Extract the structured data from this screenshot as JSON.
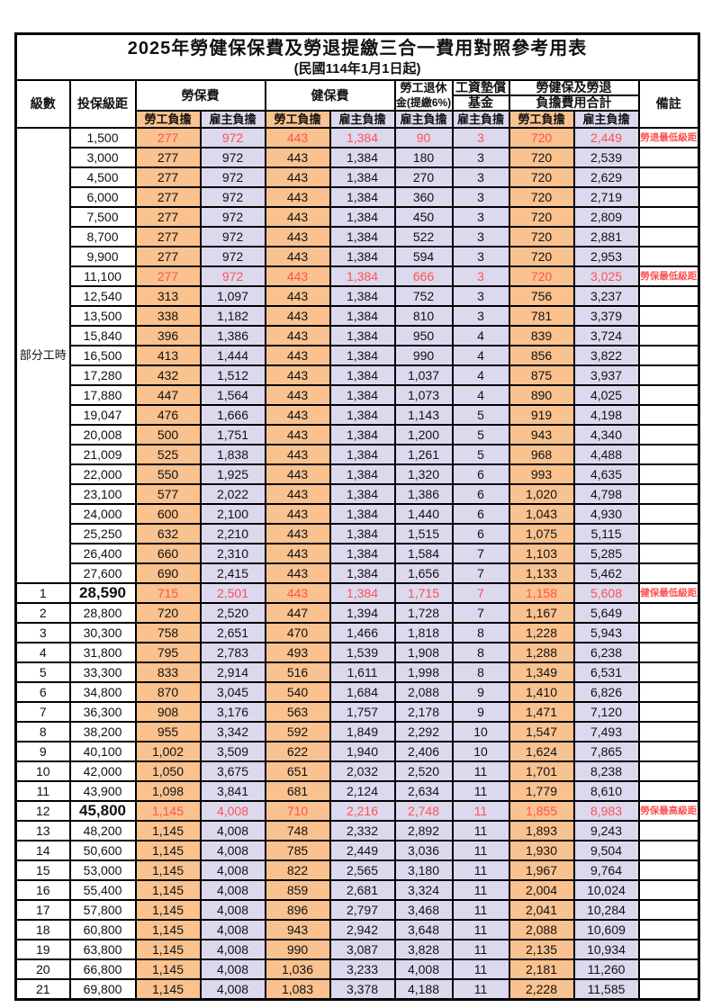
{
  "title": "2025年勞健保保費及勞退提繳三合一費用對照參考用表",
  "subtitle": "(民國114年1月1日起)",
  "colors": {
    "employee_bg": "#F9C28F",
    "employer_bg": "#DCD9EE",
    "highlight_text": "#FF5151",
    "border": "#000000"
  },
  "header": {
    "level": "級數",
    "bracket": "投保級距",
    "labor_insurance": "勞保費",
    "health_insurance": "健保費",
    "pension_line1": "勞工退休",
    "pension_line2": "金(提繳6%)",
    "wage_fund_line1": "工資墊償",
    "wage_fund_line2": "基金",
    "total_line1": "勞健保及勞退",
    "total_line2": "負擔費用合計",
    "remark": "備註",
    "employee_share": "勞工負擔",
    "employer_share": "雇主負擔"
  },
  "part_time_label": "部分工時",
  "rows": [
    {
      "level": "",
      "bracket": "1,500",
      "values": [
        "277",
        "972",
        "443",
        "1,384",
        "90",
        "3",
        "720",
        "2,449"
      ],
      "note": "勞退最低級距",
      "highlight": true,
      "big": false
    },
    {
      "level": "",
      "bracket": "3,000",
      "values": [
        "277",
        "972",
        "443",
        "1,384",
        "180",
        "3",
        "720",
        "2,539"
      ],
      "note": "",
      "highlight": false,
      "big": false
    },
    {
      "level": "",
      "bracket": "4,500",
      "values": [
        "277",
        "972",
        "443",
        "1,384",
        "270",
        "3",
        "720",
        "2,629"
      ],
      "note": "",
      "highlight": false,
      "big": false
    },
    {
      "level": "",
      "bracket": "6,000",
      "values": [
        "277",
        "972",
        "443",
        "1,384",
        "360",
        "3",
        "720",
        "2,719"
      ],
      "note": "",
      "highlight": false,
      "big": false
    },
    {
      "level": "",
      "bracket": "7,500",
      "values": [
        "277",
        "972",
        "443",
        "1,384",
        "450",
        "3",
        "720",
        "2,809"
      ],
      "note": "",
      "highlight": false,
      "big": false
    },
    {
      "level": "",
      "bracket": "8,700",
      "values": [
        "277",
        "972",
        "443",
        "1,384",
        "522",
        "3",
        "720",
        "2,881"
      ],
      "note": "",
      "highlight": false,
      "big": false
    },
    {
      "level": "",
      "bracket": "9,900",
      "values": [
        "277",
        "972",
        "443",
        "1,384",
        "594",
        "3",
        "720",
        "2,953"
      ],
      "note": "",
      "highlight": false,
      "big": false
    },
    {
      "level": "",
      "bracket": "11,100",
      "values": [
        "277",
        "972",
        "443",
        "1,384",
        "666",
        "3",
        "720",
        "3,025"
      ],
      "note": "勞保最低級距",
      "highlight": true,
      "big": false
    },
    {
      "level": "",
      "bracket": "12,540",
      "values": [
        "313",
        "1,097",
        "443",
        "1,384",
        "752",
        "3",
        "756",
        "3,237"
      ],
      "note": "",
      "highlight": false,
      "big": false
    },
    {
      "level": "",
      "bracket": "13,500",
      "values": [
        "338",
        "1,182",
        "443",
        "1,384",
        "810",
        "3",
        "781",
        "3,379"
      ],
      "note": "",
      "highlight": false,
      "big": false
    },
    {
      "level": "",
      "bracket": "15,840",
      "values": [
        "396",
        "1,386",
        "443",
        "1,384",
        "950",
        "4",
        "839",
        "3,724"
      ],
      "note": "",
      "highlight": false,
      "big": false
    },
    {
      "level": "",
      "bracket": "16,500",
      "values": [
        "413",
        "1,444",
        "443",
        "1,384",
        "990",
        "4",
        "856",
        "3,822"
      ],
      "note": "",
      "highlight": false,
      "big": false
    },
    {
      "level": "",
      "bracket": "17,280",
      "values": [
        "432",
        "1,512",
        "443",
        "1,384",
        "1,037",
        "4",
        "875",
        "3,937"
      ],
      "note": "",
      "highlight": false,
      "big": false
    },
    {
      "level": "",
      "bracket": "17,880",
      "values": [
        "447",
        "1,564",
        "443",
        "1,384",
        "1,073",
        "4",
        "890",
        "4,025"
      ],
      "note": "",
      "highlight": false,
      "big": false
    },
    {
      "level": "",
      "bracket": "19,047",
      "values": [
        "476",
        "1,666",
        "443",
        "1,384",
        "1,143",
        "5",
        "919",
        "4,198"
      ],
      "note": "",
      "highlight": false,
      "big": false
    },
    {
      "level": "",
      "bracket": "20,008",
      "values": [
        "500",
        "1,751",
        "443",
        "1,384",
        "1,200",
        "5",
        "943",
        "4,340"
      ],
      "note": "",
      "highlight": false,
      "big": false
    },
    {
      "level": "",
      "bracket": "21,009",
      "values": [
        "525",
        "1,838",
        "443",
        "1,384",
        "1,261",
        "5",
        "968",
        "4,488"
      ],
      "note": "",
      "highlight": false,
      "big": false
    },
    {
      "level": "",
      "bracket": "22,000",
      "values": [
        "550",
        "1,925",
        "443",
        "1,384",
        "1,320",
        "6",
        "993",
        "4,635"
      ],
      "note": "",
      "highlight": false,
      "big": false
    },
    {
      "level": "",
      "bracket": "23,100",
      "values": [
        "577",
        "2,022",
        "443",
        "1,384",
        "1,386",
        "6",
        "1,020",
        "4,798"
      ],
      "note": "",
      "highlight": false,
      "big": false
    },
    {
      "level": "",
      "bracket": "24,000",
      "values": [
        "600",
        "2,100",
        "443",
        "1,384",
        "1,440",
        "6",
        "1,043",
        "4,930"
      ],
      "note": "",
      "highlight": false,
      "big": false
    },
    {
      "level": "",
      "bracket": "25,250",
      "values": [
        "632",
        "2,210",
        "443",
        "1,384",
        "1,515",
        "6",
        "1,075",
        "5,115"
      ],
      "note": "",
      "highlight": false,
      "big": false
    },
    {
      "level": "",
      "bracket": "26,400",
      "values": [
        "660",
        "2,310",
        "443",
        "1,384",
        "1,584",
        "7",
        "1,103",
        "5,285"
      ],
      "note": "",
      "highlight": false,
      "big": false
    },
    {
      "level": "",
      "bracket": "27,600",
      "values": [
        "690",
        "2,415",
        "443",
        "1,384",
        "1,656",
        "7",
        "1,133",
        "5,462"
      ],
      "note": "",
      "highlight": false,
      "big": false
    },
    {
      "level": "1",
      "bracket": "28,590",
      "values": [
        "715",
        "2,501",
        "443",
        "1,384",
        "1,715",
        "7",
        "1,158",
        "5,608"
      ],
      "note": "健保最低級距",
      "highlight": true,
      "big": true
    },
    {
      "level": "2",
      "bracket": "28,800",
      "values": [
        "720",
        "2,520",
        "447",
        "1,394",
        "1,728",
        "7",
        "1,167",
        "5,649"
      ],
      "note": "",
      "highlight": false,
      "big": false
    },
    {
      "level": "3",
      "bracket": "30,300",
      "values": [
        "758",
        "2,651",
        "470",
        "1,466",
        "1,818",
        "8",
        "1,228",
        "5,943"
      ],
      "note": "",
      "highlight": false,
      "big": false
    },
    {
      "level": "4",
      "bracket": "31,800",
      "values": [
        "795",
        "2,783",
        "493",
        "1,539",
        "1,908",
        "8",
        "1,288",
        "6,238"
      ],
      "note": "",
      "highlight": false,
      "big": false
    },
    {
      "level": "5",
      "bracket": "33,300",
      "values": [
        "833",
        "2,914",
        "516",
        "1,611",
        "1,998",
        "8",
        "1,349",
        "6,531"
      ],
      "note": "",
      "highlight": false,
      "big": false
    },
    {
      "level": "6",
      "bracket": "34,800",
      "values": [
        "870",
        "3,045",
        "540",
        "1,684",
        "2,088",
        "9",
        "1,410",
        "6,826"
      ],
      "note": "",
      "highlight": false,
      "big": false
    },
    {
      "level": "7",
      "bracket": "36,300",
      "values": [
        "908",
        "3,176",
        "563",
        "1,757",
        "2,178",
        "9",
        "1,471",
        "7,120"
      ],
      "note": "",
      "highlight": false,
      "big": false
    },
    {
      "level": "8",
      "bracket": "38,200",
      "values": [
        "955",
        "3,342",
        "592",
        "1,849",
        "2,292",
        "10",
        "1,547",
        "7,493"
      ],
      "note": "",
      "highlight": false,
      "big": false
    },
    {
      "level": "9",
      "bracket": "40,100",
      "values": [
        "1,002",
        "3,509",
        "622",
        "1,940",
        "2,406",
        "10",
        "1,624",
        "7,865"
      ],
      "note": "",
      "highlight": false,
      "big": false
    },
    {
      "level": "10",
      "bracket": "42,000",
      "values": [
        "1,050",
        "3,675",
        "651",
        "2,032",
        "2,520",
        "11",
        "1,701",
        "8,238"
      ],
      "note": "",
      "highlight": false,
      "big": false
    },
    {
      "level": "11",
      "bracket": "43,900",
      "values": [
        "1,098",
        "3,841",
        "681",
        "2,124",
        "2,634",
        "11",
        "1,779",
        "8,610"
      ],
      "note": "",
      "highlight": false,
      "big": false
    },
    {
      "level": "12",
      "bracket": "45,800",
      "values": [
        "1,145",
        "4,008",
        "710",
        "2,216",
        "2,748",
        "11",
        "1,855",
        "8,983"
      ],
      "note": "勞保最高級距",
      "highlight": true,
      "big": true
    },
    {
      "level": "13",
      "bracket": "48,200",
      "values": [
        "1,145",
        "4,008",
        "748",
        "2,332",
        "2,892",
        "11",
        "1,893",
        "9,243"
      ],
      "note": "",
      "highlight": false,
      "big": false
    },
    {
      "level": "14",
      "bracket": "50,600",
      "values": [
        "1,145",
        "4,008",
        "785",
        "2,449",
        "3,036",
        "11",
        "1,930",
        "9,504"
      ],
      "note": "",
      "highlight": false,
      "big": false
    },
    {
      "level": "15",
      "bracket": "53,000",
      "values": [
        "1,145",
        "4,008",
        "822",
        "2,565",
        "3,180",
        "11",
        "1,967",
        "9,764"
      ],
      "note": "",
      "highlight": false,
      "big": false
    },
    {
      "level": "16",
      "bracket": "55,400",
      "values": [
        "1,145",
        "4,008",
        "859",
        "2,681",
        "3,324",
        "11",
        "2,004",
        "10,024"
      ],
      "note": "",
      "highlight": false,
      "big": false
    },
    {
      "level": "17",
      "bracket": "57,800",
      "values": [
        "1,145",
        "4,008",
        "896",
        "2,797",
        "3,468",
        "11",
        "2,041",
        "10,284"
      ],
      "note": "",
      "highlight": false,
      "big": false
    },
    {
      "level": "18",
      "bracket": "60,800",
      "values": [
        "1,145",
        "4,008",
        "943",
        "2,942",
        "3,648",
        "11",
        "2,088",
        "10,609"
      ],
      "note": "",
      "highlight": false,
      "big": false
    },
    {
      "level": "19",
      "bracket": "63,800",
      "values": [
        "1,145",
        "4,008",
        "990",
        "3,087",
        "3,828",
        "11",
        "2,135",
        "10,934"
      ],
      "note": "",
      "highlight": false,
      "big": false
    },
    {
      "level": "20",
      "bracket": "66,800",
      "values": [
        "1,145",
        "4,008",
        "1,036",
        "3,233",
        "4,008",
        "11",
        "2,181",
        "11,260"
      ],
      "note": "",
      "highlight": false,
      "big": false
    },
    {
      "level": "21",
      "bracket": "69,800",
      "values": [
        "1,145",
        "4,008",
        "1,083",
        "3,378",
        "4,188",
        "11",
        "2,228",
        "11,585"
      ],
      "note": "",
      "highlight": false,
      "big": false
    }
  ]
}
